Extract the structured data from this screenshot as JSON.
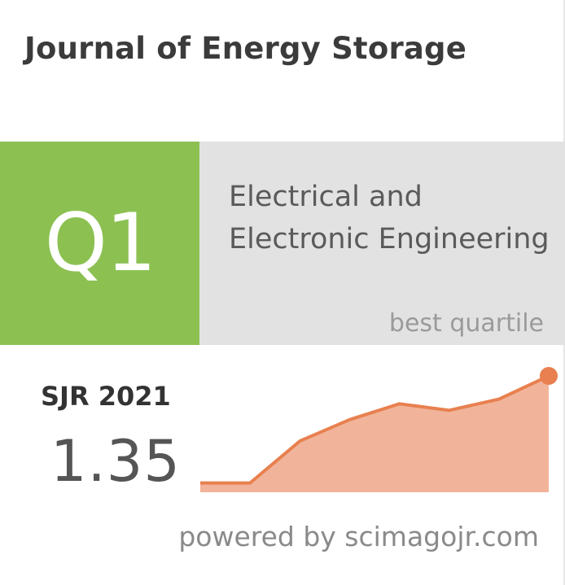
{
  "journal": {
    "title": "Journal of Energy Storage"
  },
  "quartile": {
    "label": "Q1",
    "category": "Electrical and Electronic Engineering",
    "caption": "best quartile"
  },
  "sjr": {
    "label": "SJR 2021",
    "value": "1.35"
  },
  "footer": {
    "text": "powered by scimagojr.com"
  },
  "colors": {
    "quartile_green": "#8cc152",
    "category_gray": "#e2e2e2",
    "trend_line": "#e8804f",
    "trend_fill": "#f1b49a"
  },
  "trend": {
    "values": [
      0.1,
      0.1,
      0.55,
      0.78,
      0.95,
      0.88,
      1.0,
      1.25
    ]
  }
}
